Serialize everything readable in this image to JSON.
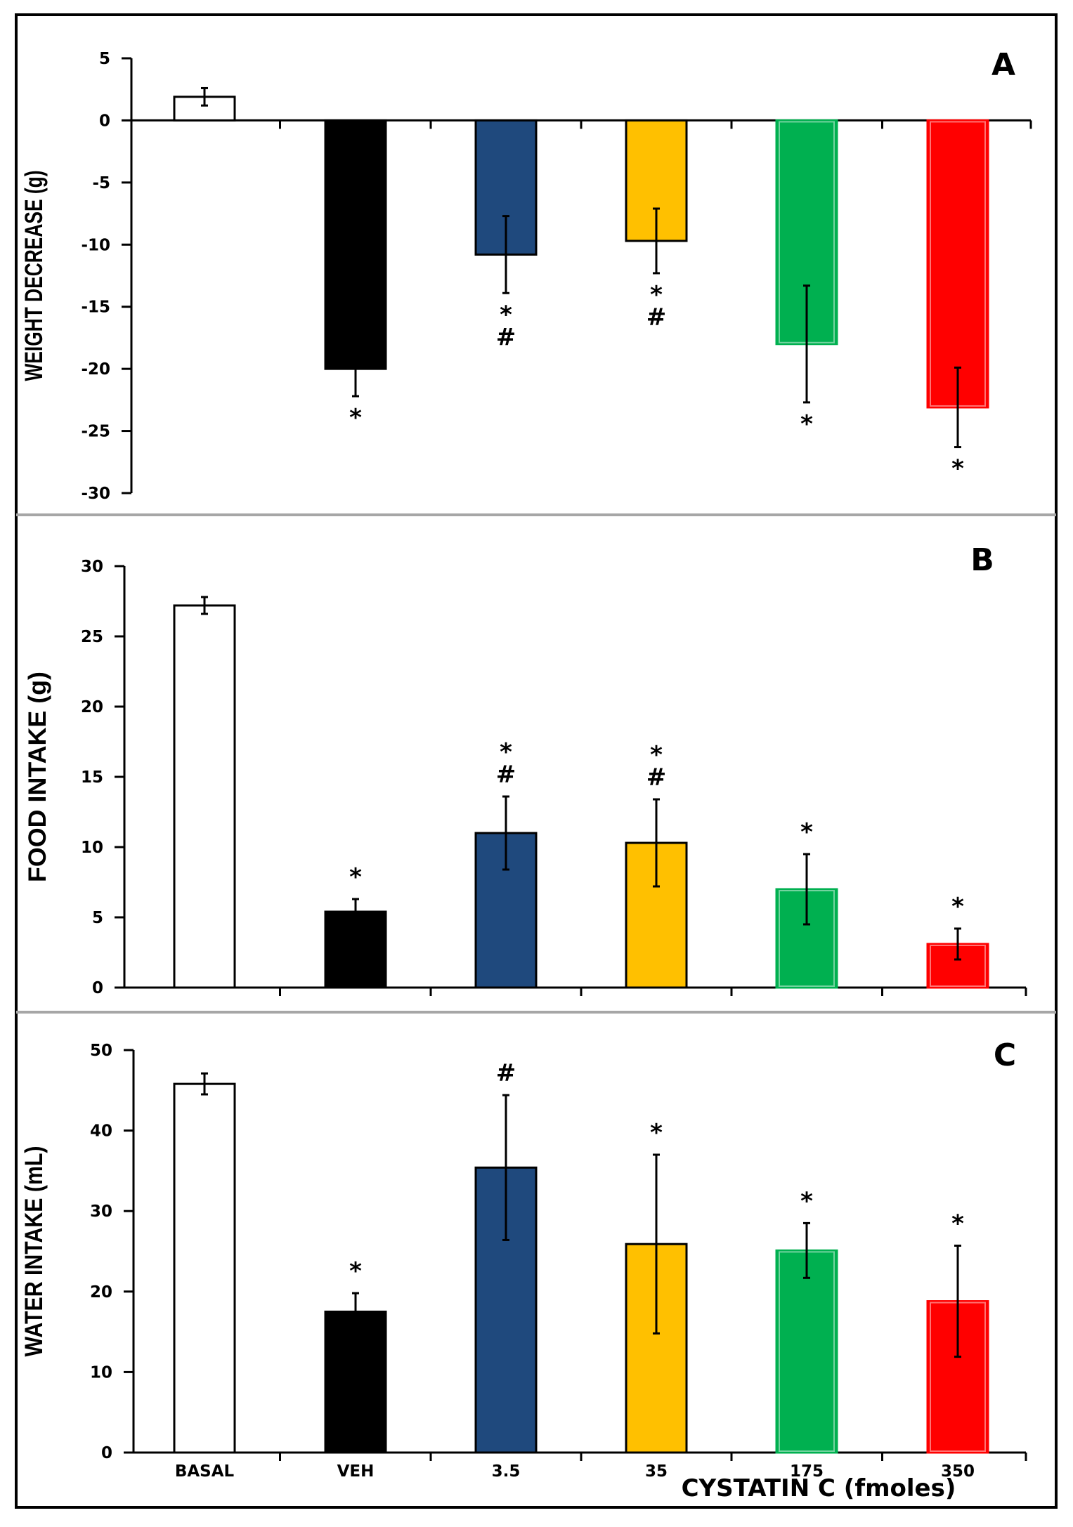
{
  "chart_data": [
    {
      "type": "bar",
      "panel_label": "A",
      "ylabel": "WEIGHT DECREASE (g)",
      "ylim": [
        -30,
        5
      ],
      "yticks": [
        5,
        0,
        -5,
        -10,
        -15,
        -20,
        -25,
        -30
      ],
      "categories": [
        "BASAL",
        "VEH",
        "3.5",
        "35",
        "175",
        "350"
      ],
      "values": [
        1.9,
        -20.0,
        -10.8,
        -9.7,
        -18.0,
        -23.1
      ],
      "errors": [
        0.7,
        2.2,
        3.1,
        2.6,
        4.7,
        3.2
      ],
      "annotations": [
        [],
        [
          "*"
        ],
        [
          "*",
          "#"
        ],
        [
          "*",
          "#"
        ],
        [
          "*"
        ],
        [
          "*"
        ]
      ]
    },
    {
      "type": "bar",
      "panel_label": "B",
      "ylabel": "FOOD INTAKE (g)",
      "ylim": [
        0,
        30
      ],
      "yticks": [
        30,
        25,
        20,
        15,
        10,
        5,
        0
      ],
      "categories": [
        "BASAL",
        "VEH",
        "3.5",
        "35",
        "175",
        "350"
      ],
      "values": [
        27.2,
        5.4,
        11.0,
        10.3,
        7.0,
        3.1
      ],
      "errors": [
        0.6,
        0.9,
        2.6,
        3.1,
        2.5,
        1.1
      ],
      "annotations": [
        [],
        [
          "*"
        ],
        [
          "*",
          "#"
        ],
        [
          "*",
          "#"
        ],
        [
          "*"
        ],
        [
          "*"
        ]
      ]
    },
    {
      "type": "bar",
      "panel_label": "C",
      "ylabel": "WATER INTAKE (mL)",
      "ylim": [
        0,
        50
      ],
      "yticks": [
        50,
        40,
        30,
        20,
        10,
        0
      ],
      "categories": [
        "BASAL",
        "VEH",
        "3.5",
        "35",
        "175",
        "350"
      ],
      "values": [
        45.8,
        17.5,
        35.4,
        25.9,
        25.1,
        18.8
      ],
      "errors": [
        1.3,
        2.3,
        9.0,
        11.1,
        3.4,
        6.9
      ],
      "annotations": [
        [],
        [
          "*"
        ],
        [
          "#"
        ],
        [
          "*"
        ],
        [
          "*"
        ],
        [
          "*"
        ]
      ]
    }
  ],
  "bar_colors": [
    "#ffffff",
    "#000000",
    "#1f497d",
    "#ffc000",
    "#00b050",
    "#ff0000"
  ],
  "x_title": "CYSTATIN C  (fmoles)"
}
